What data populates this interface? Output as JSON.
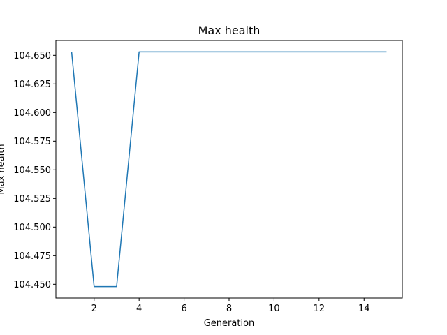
{
  "chart_data": {
    "type": "line",
    "title": "Max health",
    "xlabel": "Generation",
    "ylabel": "Max health",
    "xlim": [
      0.3,
      15.7
    ],
    "ylim": [
      104.438,
      104.663
    ],
    "x_ticks": [
      2,
      4,
      6,
      8,
      10,
      12,
      14
    ],
    "y_ticks": [
      104.45,
      104.475,
      104.5,
      104.525,
      104.55,
      104.575,
      104.6,
      104.625,
      104.65
    ],
    "y_tick_decimals": 3,
    "grid": false,
    "series": [
      {
        "color": "#1f77b4",
        "x": [
          1,
          2,
          3,
          4,
          5,
          6,
          7,
          8,
          9,
          10,
          11,
          12,
          13,
          14,
          15
        ],
        "values": [
          104.653,
          104.448,
          104.448,
          104.653,
          104.653,
          104.653,
          104.653,
          104.653,
          104.653,
          104.653,
          104.653,
          104.653,
          104.653,
          104.653,
          104.653
        ]
      }
    ]
  }
}
